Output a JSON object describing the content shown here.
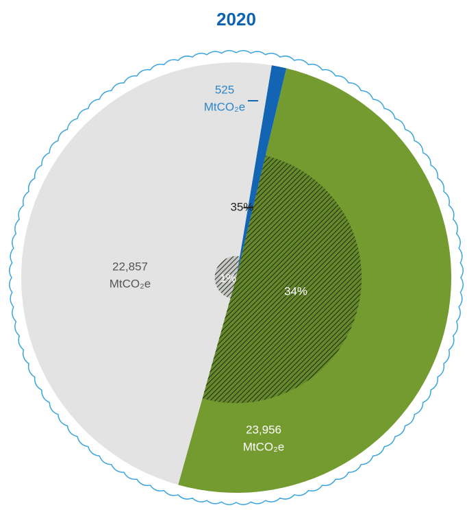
{
  "chart_data": {
    "type": "pie",
    "title": "2020",
    "values": [
      525,
      23956,
      22857
    ],
    "value_labels": [
      "525",
      "23,956",
      "22,857"
    ],
    "unit": "MtCO₂e",
    "colors": [
      "#1464b4",
      "#739b30",
      "#e3e3e3"
    ],
    "inner_values": [
      null,
      34,
      1
    ],
    "inner_labels": [
      null,
      "34%",
      "1%"
    ],
    "inner_total": 35,
    "inner_total_label": "35%"
  }
}
